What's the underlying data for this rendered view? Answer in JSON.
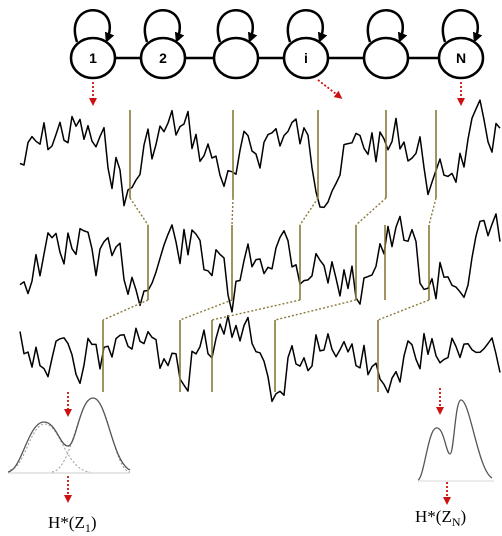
{
  "hmm": {
    "states": [
      {
        "label": "1"
      },
      {
        "label": "2"
      },
      {
        "label": ""
      },
      {
        "label": "i"
      },
      {
        "label": ""
      },
      {
        "label": "N"
      }
    ]
  },
  "outputs": {
    "left": {
      "text": "H*(Z",
      "subscript": "1",
      "close": ")"
    },
    "right": {
      "text": "H*(Z",
      "subscript": "N",
      "close": ")"
    }
  },
  "colors": {
    "arrow": "#cc1111",
    "segment_line": "#8a7a3a",
    "signal": "#000000",
    "density_main": "#555555",
    "density_component": "#999999"
  }
}
